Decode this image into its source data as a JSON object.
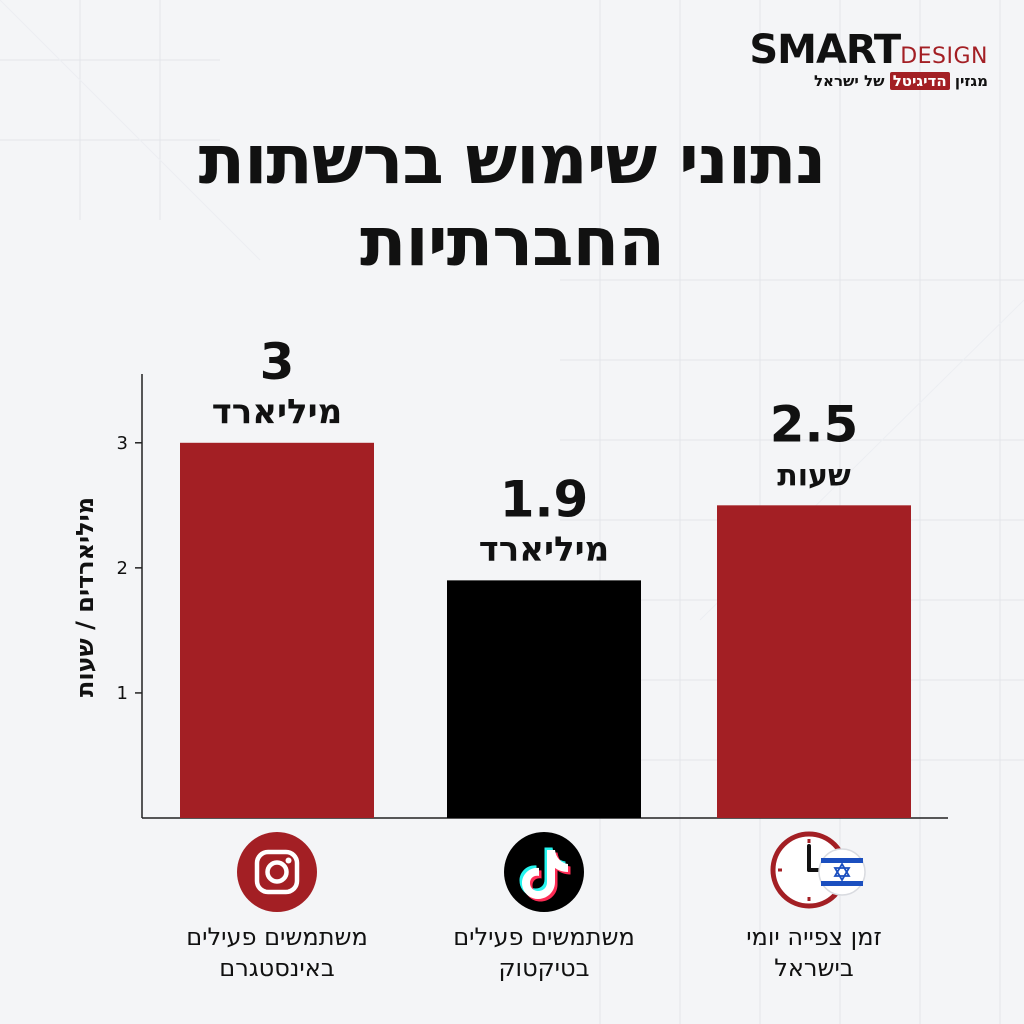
{
  "brand": {
    "name_main": "SMART",
    "name_sub": "DESIGN",
    "tagline_pre": "מגזין",
    "tagline_highlight": "הדיגיטל",
    "tagline_post": "של ישראל"
  },
  "title_lines": [
    "נתוני שימוש ברשתות",
    "החברתיות"
  ],
  "chart_data": {
    "type": "bar",
    "categories": [
      "זמן צפייה יומי בישראל",
      "משתמשים פעילים בטיקטוק",
      "משתמשים פעילים באינסטגרם"
    ],
    "category_lines": [
      [
        "זמן צפייה יומי",
        "בישראל"
      ],
      [
        "משתמשים פעילים",
        "בטיקטוק"
      ],
      [
        "משתמשים פעילים",
        "באינסטגרם"
      ]
    ],
    "values": [
      2.5,
      1.9,
      3
    ],
    "value_labels": [
      "2.5",
      "1.9",
      "3"
    ],
    "unit_labels": [
      "שעות",
      "מיליארד",
      "מיליארד"
    ],
    "bar_colors": [
      "#a31f24",
      "#000000",
      "#a31f24"
    ],
    "category_icons": [
      "clock-israel-flag-icon",
      "tiktok-icon",
      "instagram-icon"
    ],
    "ylabel": "מיליארדים / שעות",
    "yticks": [
      1,
      2,
      3
    ],
    "ylim": [
      0,
      3.55
    ],
    "grid": false
  },
  "colors": {
    "accent": "#a31f24",
    "dark": "#000000",
    "text": "#111111"
  }
}
